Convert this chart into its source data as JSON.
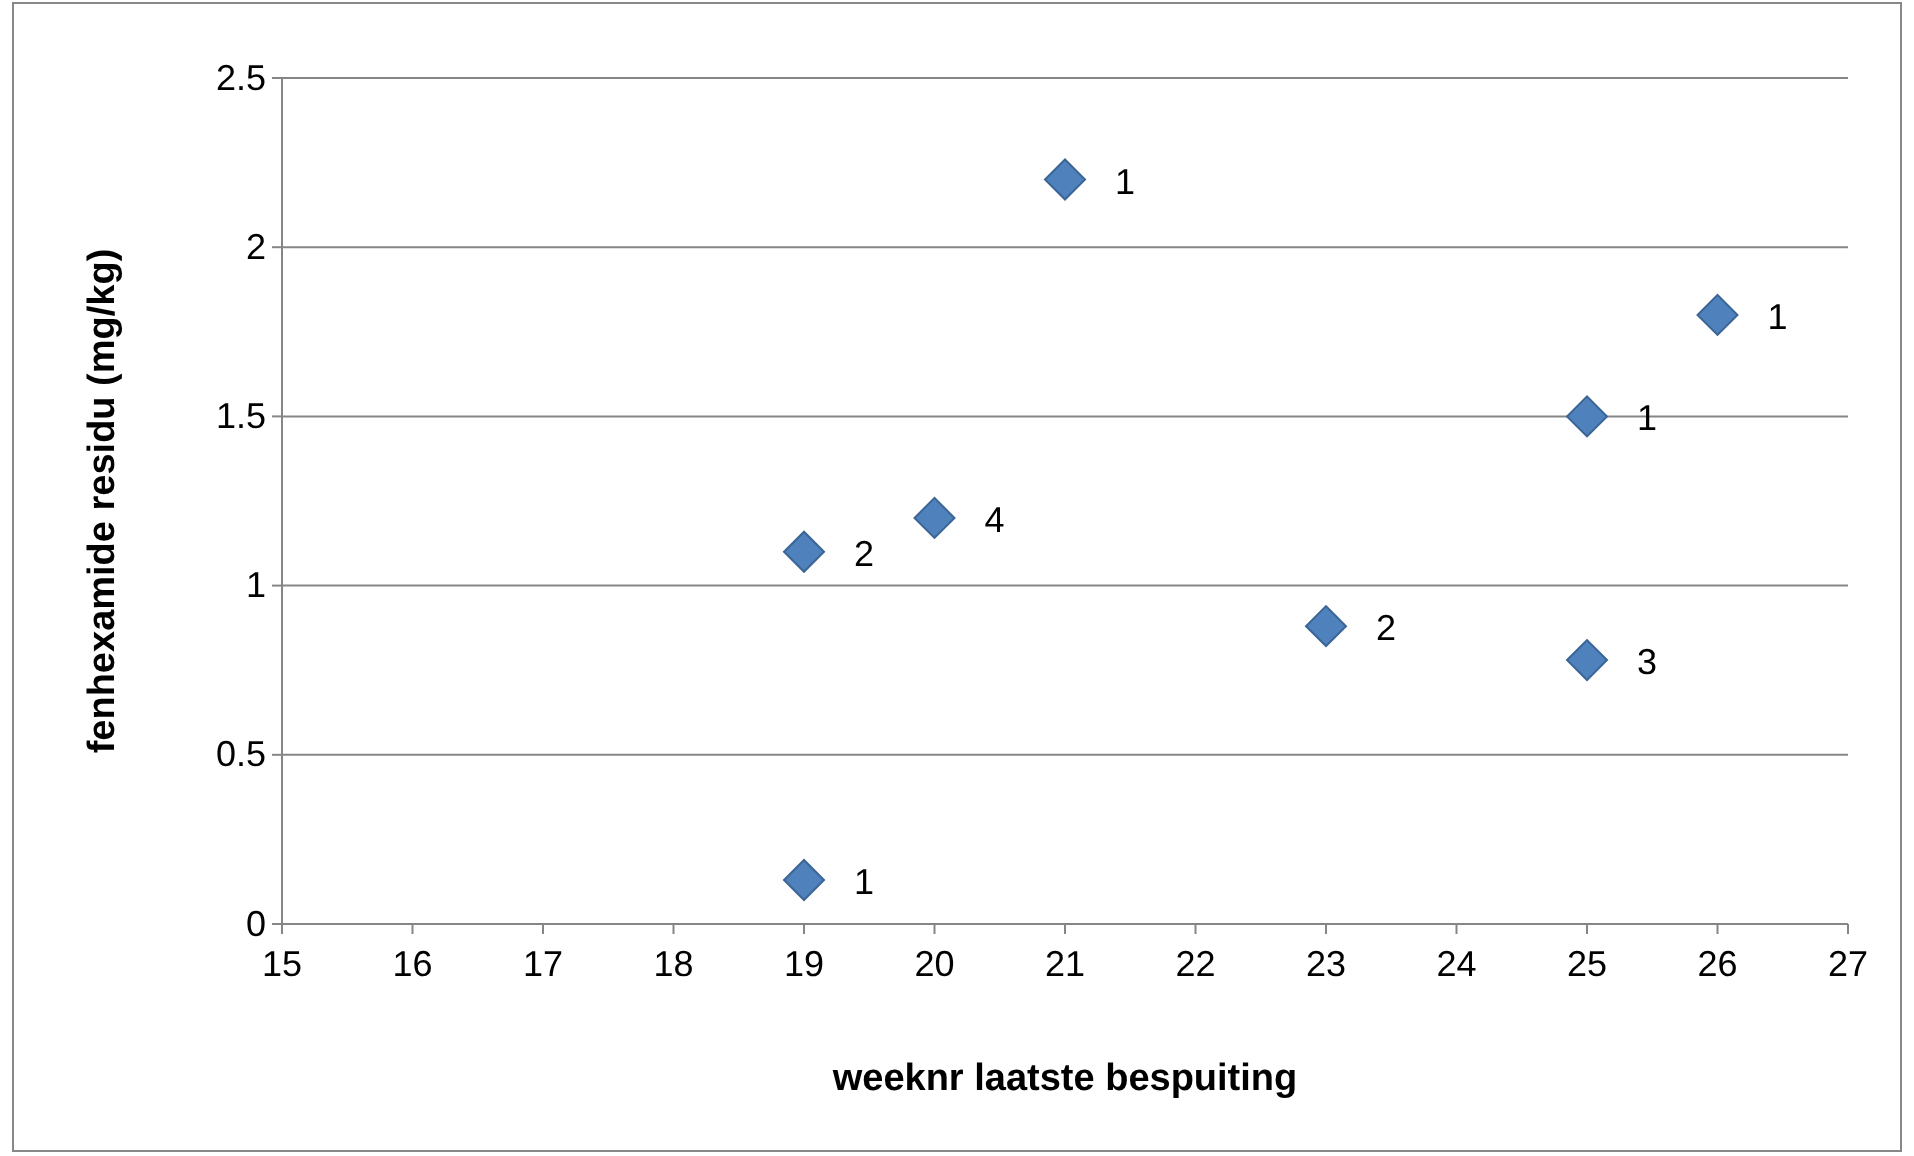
{
  "chart_data": {
    "type": "scatter",
    "xlabel": "weeknr laatste bespuiting",
    "ylabel": "fenhexamide residu (mg/kg)",
    "x": [
      19,
      19,
      20,
      21,
      23,
      25,
      25,
      26
    ],
    "values": [
      0.13,
      1.1,
      1.2,
      2.2,
      0.88,
      1.5,
      0.78,
      1.8
    ],
    "annotations": [
      {
        "text": "1",
        "x": 19,
        "y": 0.13
      },
      {
        "text": "2",
        "x": 19,
        "y": 1.1
      },
      {
        "text": "4",
        "x": 20,
        "y": 1.2
      },
      {
        "text": "1",
        "x": 21,
        "y": 2.2
      },
      {
        "text": "2",
        "x": 23,
        "y": 0.88
      },
      {
        "text": "1",
        "x": 25,
        "y": 1.5
      },
      {
        "text": "3",
        "x": 25,
        "y": 0.78
      },
      {
        "text": "1",
        "x": 26,
        "y": 1.8
      }
    ],
    "color": "#4f81bd",
    "marker": "diamond",
    "xlim": [
      15,
      27
    ],
    "xticks": [
      15,
      16,
      17,
      18,
      19,
      20,
      21,
      22,
      23,
      24,
      25,
      26,
      27
    ],
    "ylim": [
      0,
      2.5
    ],
    "yticks": [
      0,
      0.5,
      1,
      1.5,
      2,
      2.5
    ],
    "grid": "y"
  }
}
